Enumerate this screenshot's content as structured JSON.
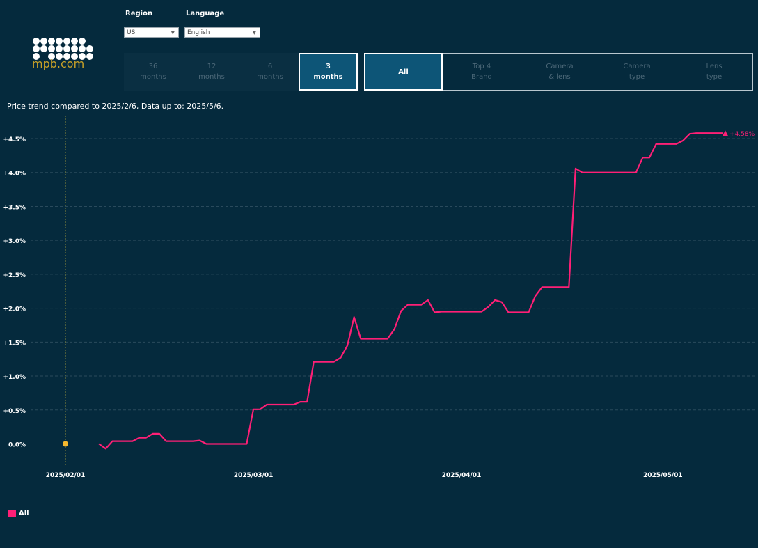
{
  "header": {
    "logo_text": "mpb.com",
    "region_label": "Region",
    "region_value": "US",
    "language_label": "Language",
    "language_value": "English"
  },
  "periods": [
    {
      "line1": "36",
      "line2": "months",
      "active": false
    },
    {
      "line1": "12",
      "line2": "months",
      "active": false
    },
    {
      "line1": "6",
      "line2": "months",
      "active": false
    },
    {
      "line1": "3",
      "line2": "months",
      "active": true
    }
  ],
  "categories": [
    {
      "line1": "All",
      "line2": "",
      "active": true
    },
    {
      "line1": "Top 4",
      "line2": "Brand",
      "active": false
    },
    {
      "line1": "Camera",
      "line2": "& lens",
      "active": false
    },
    {
      "line1": "Camera",
      "line2": "type",
      "active": false
    },
    {
      "line1": "Lens",
      "line2": "type",
      "active": false
    }
  ],
  "subtitle": "Price trend compared to 2025/2/6, Data up to: 2025/5/6.",
  "legend": {
    "label": "All",
    "color": "#ff1f76"
  },
  "colors": {
    "background": "#052a3d",
    "line": "#ff1f76",
    "start_marker": "#f5b82e",
    "accent": "#0d5577"
  },
  "chart_data": {
    "type": "line",
    "title": "",
    "xlabel": "",
    "ylabel": "",
    "ylim": [
      -0.2,
      4.8
    ],
    "yticks": [
      0.0,
      0.5,
      1.0,
      1.5,
      2.0,
      2.5,
      3.0,
      3.5,
      4.0,
      4.5
    ],
    "ytick_labels": [
      "0.0%",
      "+0.5%",
      "+1.0%",
      "+1.5%",
      "+2.0%",
      "+2.5%",
      "+3.0%",
      "+3.5%",
      "+4.0%",
      "+4.5%"
    ],
    "xticks": [
      "2025-02-01",
      "2025-03-01",
      "2025-04-01",
      "2025-05-01"
    ],
    "xtick_labels": [
      "2025/02/01",
      "2025/03/01",
      "2025/04/01",
      "2025/05/01"
    ],
    "reference_date": "2025-02-06",
    "end_label": "+4.58%",
    "grid": true,
    "series": [
      {
        "name": "All",
        "points": [
          [
            "2025-02-06",
            0.0
          ],
          [
            "2025-02-07",
            -0.07
          ],
          [
            "2025-02-08",
            0.04
          ],
          [
            "2025-02-10",
            0.04
          ],
          [
            "2025-02-11",
            0.04
          ],
          [
            "2025-02-12",
            0.09
          ],
          [
            "2025-02-13",
            0.09
          ],
          [
            "2025-02-14",
            0.15
          ],
          [
            "2025-02-15",
            0.15
          ],
          [
            "2025-02-16",
            0.04
          ],
          [
            "2025-02-20",
            0.04
          ],
          [
            "2025-02-21",
            0.05
          ],
          [
            "2025-02-22",
            0.0
          ],
          [
            "2025-02-28",
            0.0
          ],
          [
            "2025-03-01",
            0.51
          ],
          [
            "2025-03-02",
            0.51
          ],
          [
            "2025-03-03",
            0.58
          ],
          [
            "2025-03-07",
            0.58
          ],
          [
            "2025-03-08",
            0.62
          ],
          [
            "2025-03-09",
            0.62
          ],
          [
            "2025-03-10",
            1.21
          ],
          [
            "2025-03-13",
            1.21
          ],
          [
            "2025-03-14",
            1.27
          ],
          [
            "2025-03-15",
            1.45
          ],
          [
            "2025-03-16",
            1.87
          ],
          [
            "2025-03-17",
            1.55
          ],
          [
            "2025-03-21",
            1.55
          ],
          [
            "2025-03-22",
            1.69
          ],
          [
            "2025-03-23",
            1.96
          ],
          [
            "2025-03-24",
            2.05
          ],
          [
            "2025-03-26",
            2.05
          ],
          [
            "2025-03-27",
            2.12
          ],
          [
            "2025-03-28",
            1.94
          ],
          [
            "2025-03-29",
            1.95
          ],
          [
            "2025-04-04",
            1.95
          ],
          [
            "2025-04-05",
            2.02
          ],
          [
            "2025-04-06",
            2.12
          ],
          [
            "2025-04-07",
            2.09
          ],
          [
            "2025-04-08",
            1.94
          ],
          [
            "2025-04-11",
            1.94
          ],
          [
            "2025-04-12",
            2.18
          ],
          [
            "2025-04-13",
            2.31
          ],
          [
            "2025-04-17",
            2.31
          ],
          [
            "2025-04-18",
            4.06
          ],
          [
            "2025-04-19",
            4.0
          ],
          [
            "2025-04-27",
            4.0
          ],
          [
            "2025-04-28",
            4.22
          ],
          [
            "2025-04-29",
            4.22
          ],
          [
            "2025-04-30",
            4.42
          ],
          [
            "2025-05-03",
            4.42
          ],
          [
            "2025-05-04",
            4.47
          ],
          [
            "2025-05-05",
            4.57
          ],
          [
            "2025-05-06",
            4.58
          ],
          [
            "2025-05-10",
            4.58
          ]
        ]
      }
    ]
  }
}
